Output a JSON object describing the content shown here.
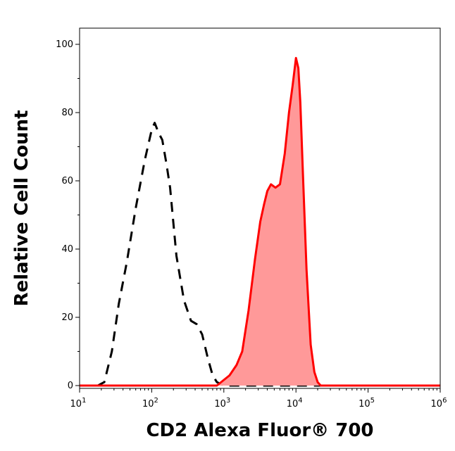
{
  "chart_data": {
    "type": "area",
    "title": "",
    "xlabel": "CD2 Alexa Fluor® 700",
    "ylabel": "Relative Cell Count",
    "x_scale": "log",
    "xlim": [
      10,
      1000000
    ],
    "ylim": [
      0,
      105
    ],
    "x_ticks": [
      {
        "value": 10,
        "base": "10",
        "exp": "1"
      },
      {
        "value": 100,
        "base": "10",
        "exp": "2"
      },
      {
        "value": 1000,
        "base": "10",
        "exp": "3"
      },
      {
        "value": 10000,
        "base": "10",
        "exp": "4"
      },
      {
        "value": 100000,
        "base": "10",
        "exp": "5"
      },
      {
        "value": 1000000,
        "base": "10",
        "exp": "6"
      }
    ],
    "y_ticks": [
      0,
      20,
      40,
      60,
      80,
      100
    ],
    "grid": false,
    "legend": "none",
    "series": [
      {
        "style": "dashed-outline",
        "color": "#000000",
        "x": [
          10,
          18,
          22,
          28,
          35,
          45,
          60,
          80,
          100,
          110,
          125,
          140,
          160,
          180,
          220,
          280,
          350,
          420,
          500,
          600,
          700,
          800,
          1000,
          2000,
          5000,
          10000,
          100000,
          1000000
        ],
        "y": [
          0,
          0,
          1,
          10,
          24,
          36,
          52,
          66,
          75,
          77,
          74,
          72,
          65,
          58,
          38,
          25,
          19,
          18,
          15,
          8,
          3,
          1,
          0,
          0,
          0,
          0,
          0,
          0
        ]
      },
      {
        "style": "filled",
        "color": "#ff0000",
        "fill": "#ff9999",
        "x": [
          10,
          500,
          800,
          1200,
          1500,
          1800,
          2200,
          2700,
          3200,
          3600,
          4000,
          4500,
          5200,
          6000,
          7000,
          8000,
          9000,
          10000,
          10800,
          11500,
          12500,
          14000,
          16000,
          18000,
          20000,
          22000,
          25000,
          30000,
          100000,
          1000000
        ],
        "y": [
          0,
          0,
          0,
          3,
          6,
          10,
          22,
          37,
          48,
          53,
          57,
          59,
          58,
          59,
          68,
          80,
          88,
          96,
          93,
          83,
          62,
          34,
          12,
          4,
          1,
          0,
          0,
          0,
          0,
          0
        ]
      }
    ]
  }
}
